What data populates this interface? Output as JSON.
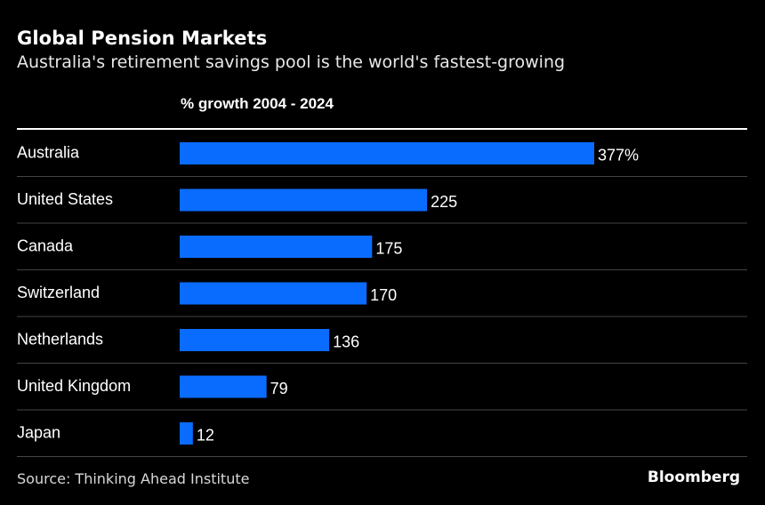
{
  "header": {
    "title": "Global Pension Markets",
    "subtitle": "Australia's retirement savings pool is the world's fastest-growing",
    "column_header": "% growth 2004 - 2024"
  },
  "footer": {
    "source": "Source: Thinking Ahead Institute",
    "brand": "Bloomberg"
  },
  "colors": {
    "bar": "#0a6cff",
    "background": "#000000",
    "divider": "#444444",
    "top_rule": "#ffffff"
  },
  "chart_data": {
    "type": "bar",
    "orientation": "horizontal",
    "title": "Global Pension Markets",
    "subtitle": "Australia's retirement savings pool is the world's fastest-growing",
    "xlabel": "% growth 2004 - 2024",
    "ylabel": "",
    "categories": [
      "Australia",
      "United States",
      "Canada",
      "Switzerland",
      "Netherlands",
      "United Kingdom",
      "Japan"
    ],
    "values": [
      377,
      225,
      175,
      170,
      136,
      79,
      12
    ],
    "value_labels": [
      "377%",
      "225",
      "175",
      "170",
      "136",
      "79",
      "12"
    ],
    "xlim": [
      0,
      377
    ],
    "grid": false,
    "legend": "none"
  }
}
